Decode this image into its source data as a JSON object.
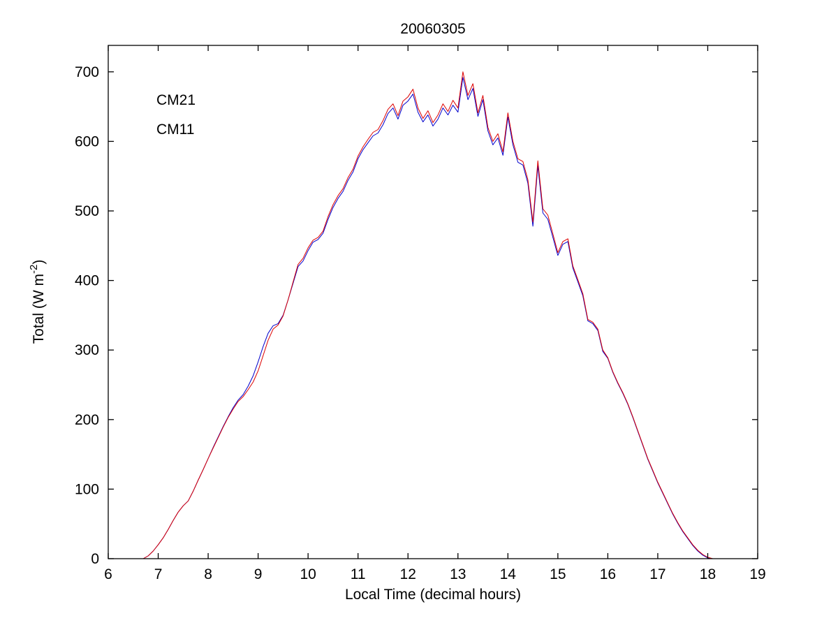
{
  "chart_data": {
    "type": "line",
    "title": "20060305",
    "xlabel": "Local Time (decimal hours)",
    "ylabel_prefix": "Total (W m",
    "ylabel_sup": "-2",
    "ylabel_suffix": ")",
    "xlim": [
      6,
      19
    ],
    "ylim": [
      0,
      700
    ],
    "ylim_draw": [
      0,
      738
    ],
    "xticks": [
      6,
      7,
      8,
      9,
      10,
      11,
      12,
      13,
      14,
      15,
      16,
      17,
      18,
      19
    ],
    "yticks": [
      0,
      100,
      200,
      300,
      400,
      500,
      600,
      700
    ],
    "grid": false,
    "legend_position": "upper-left-inside",
    "x": [
      6.7,
      6.8,
      6.9,
      7.0,
      7.1,
      7.2,
      7.3,
      7.4,
      7.5,
      7.6,
      7.7,
      7.8,
      7.9,
      8.0,
      8.1,
      8.2,
      8.3,
      8.4,
      8.5,
      8.6,
      8.7,
      8.8,
      8.9,
      9.0,
      9.1,
      9.2,
      9.3,
      9.4,
      9.5,
      9.6,
      9.7,
      9.8,
      9.9,
      10.0,
      10.1,
      10.2,
      10.3,
      10.4,
      10.5,
      10.6,
      10.7,
      10.8,
      10.9,
      11.0,
      11.1,
      11.2,
      11.3,
      11.4,
      11.5,
      11.6,
      11.7,
      11.8,
      11.9,
      12.0,
      12.1,
      12.2,
      12.3,
      12.4,
      12.5,
      12.6,
      12.7,
      12.8,
      12.9,
      13.0,
      13.1,
      13.2,
      13.3,
      13.4,
      13.5,
      13.6,
      13.7,
      13.8,
      13.9,
      14.0,
      14.1,
      14.2,
      14.3,
      14.4,
      14.5,
      14.6,
      14.7,
      14.8,
      14.9,
      15.0,
      15.1,
      15.2,
      15.3,
      15.4,
      15.5,
      15.6,
      15.7,
      15.8,
      15.9,
      16.0,
      16.1,
      16.2,
      16.3,
      16.4,
      16.5,
      16.6,
      16.7,
      16.8,
      16.9,
      17.0,
      17.1,
      17.2,
      17.3,
      17.4,
      17.5,
      17.6,
      17.7,
      17.8,
      17.9,
      18.0,
      18.1
    ],
    "series": [
      {
        "name": "CM21",
        "color": "#0000cc",
        "values": [
          0,
          4,
          11,
          20,
          30,
          42,
          55,
          67,
          76,
          83,
          97,
          113,
          128,
          144,
          160,
          175,
          190,
          204,
          217,
          228,
          236,
          248,
          263,
          283,
          305,
          324,
          335,
          338,
          350,
          372,
          396,
          420,
          428,
          443,
          455,
          459,
          468,
          488,
          505,
          518,
          528,
          544,
          556,
          575,
          588,
          598,
          608,
          612,
          624,
          640,
          648,
          632,
          652,
          658,
          668,
          642,
          628,
          638,
          622,
          632,
          648,
          638,
          652,
          642,
          692,
          660,
          676,
          636,
          660,
          615,
          595,
          605,
          580,
          635,
          595,
          570,
          566,
          540,
          478,
          565,
          497,
          488,
          462,
          436,
          452,
          456,
          418,
          398,
          378,
          342,
          338,
          328,
          298,
          288,
          268,
          252,
          238,
          222,
          203,
          183,
          163,
          143,
          126,
          109,
          94,
          79,
          64,
          51,
          39,
          29,
          19,
          11,
          5,
          1,
          0
        ]
      },
      {
        "name": "CM11",
        "color": "#dd0000",
        "values": [
          0,
          4,
          11,
          20,
          30,
          42,
          55,
          67,
          76,
          83,
          97,
          113,
          128,
          144,
          159,
          174,
          189,
          203,
          215,
          226,
          233,
          243,
          254,
          270,
          292,
          314,
          330,
          336,
          349,
          372,
          398,
          423,
          432,
          447,
          458,
          462,
          471,
          492,
          509,
          522,
          532,
          548,
          560,
          579,
          592,
          603,
          613,
          617,
          630,
          646,
          654,
          637,
          658,
          664,
          675,
          648,
          633,
          644,
          627,
          638,
          654,
          643,
          659,
          648,
          700,
          666,
          683,
          641,
          666,
          620,
          600,
          611,
          585,
          641,
          600,
          575,
          571,
          545,
          484,
          572,
          503,
          494,
          467,
          440,
          456,
          460,
          421,
          401,
          381,
          344,
          340,
          330,
          300,
          289,
          269,
          253,
          239,
          223,
          204,
          184,
          164,
          144,
          127,
          110,
          95,
          80,
          65,
          52,
          40,
          30,
          20,
          12,
          6,
          2,
          0
        ]
      }
    ]
  }
}
